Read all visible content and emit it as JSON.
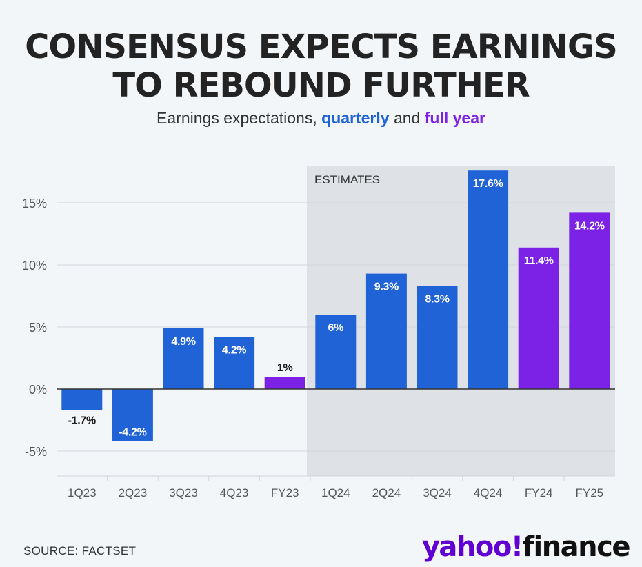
{
  "header": {
    "title_line1": "CONSENSUS EXPECTS EARNINGS",
    "title_line2": "TO REBOUND FURTHER",
    "subtitle_pre": "Earnings expectations,",
    "subtitle_quarterly": "quarterly",
    "subtitle_and": "and",
    "subtitle_fullyear": "full year"
  },
  "footer": {
    "source": "SOURCE: FACTSET",
    "logo_yahoo": "yahoo",
    "logo_bang": "!",
    "logo_finance": "finance"
  },
  "colors": {
    "quarterly": "#1f63d6",
    "full_year": "#7b22e6",
    "estimates_band": "#dee2e7",
    "grid": "#d2d6db",
    "zero_line": "#333333"
  },
  "chart_data": {
    "type": "bar",
    "title": "CONSENSUS EXPECTS EARNINGS TO REBOUND FURTHER",
    "subtitle": "Earnings expectations, quarterly and full year",
    "xlabel": "",
    "ylabel": "",
    "ylim": [
      -7,
      18
    ],
    "yticks": [
      -5,
      0,
      5,
      10,
      15
    ],
    "ytick_labels": [
      "-5%",
      "0%",
      "5%",
      "10%",
      "15%"
    ],
    "grid": true,
    "categories": [
      "1Q23",
      "2Q23",
      "3Q23",
      "4Q23",
      "FY23",
      "1Q24",
      "2Q24",
      "3Q24",
      "4Q24",
      "FY24",
      "FY25"
    ],
    "values": [
      -1.7,
      -4.2,
      4.9,
      4.2,
      1,
      6,
      9.3,
      8.3,
      17.6,
      11.4,
      14.2
    ],
    "value_labels": [
      "-1.7%",
      "-4.2%",
      "4.9%",
      "4.2%",
      "1%",
      "6%",
      "9.3%",
      "8.3%",
      "17.6%",
      "11.4%",
      "14.2%"
    ],
    "kinds": [
      "quarterly",
      "quarterly",
      "quarterly",
      "quarterly",
      "full_year",
      "quarterly",
      "quarterly",
      "quarterly",
      "quarterly",
      "full_year",
      "full_year"
    ],
    "estimates_from_category": "1Q24",
    "estimates_label": "ESTIMATES"
  }
}
